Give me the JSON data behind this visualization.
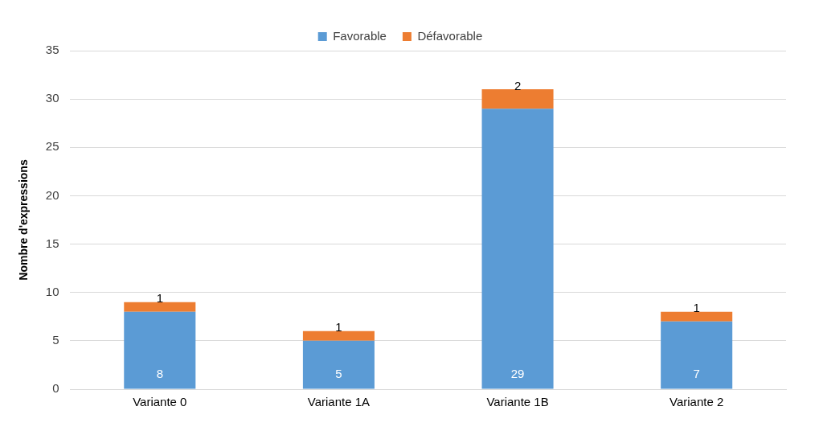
{
  "chart_data": {
    "type": "bar",
    "ylabel": "Nombre d'expressions",
    "categories": [
      "Variante 0",
      "Variante 1A",
      "Variante 1B",
      "Variante 2"
    ],
    "series": [
      {
        "name": "Favorable",
        "color": "#5b9bd5",
        "values": [
          8,
          5,
          29,
          7
        ]
      },
      {
        "name": "Défavorable",
        "color": "#ed7d31",
        "values": [
          1,
          1,
          2,
          1
        ]
      }
    ],
    "stacked": true,
    "ylim": [
      0,
      35
    ],
    "yticks": [
      0,
      5,
      10,
      15,
      20,
      25,
      30,
      35
    ],
    "grid": "y",
    "legend": "top",
    "data_labels": true
  }
}
